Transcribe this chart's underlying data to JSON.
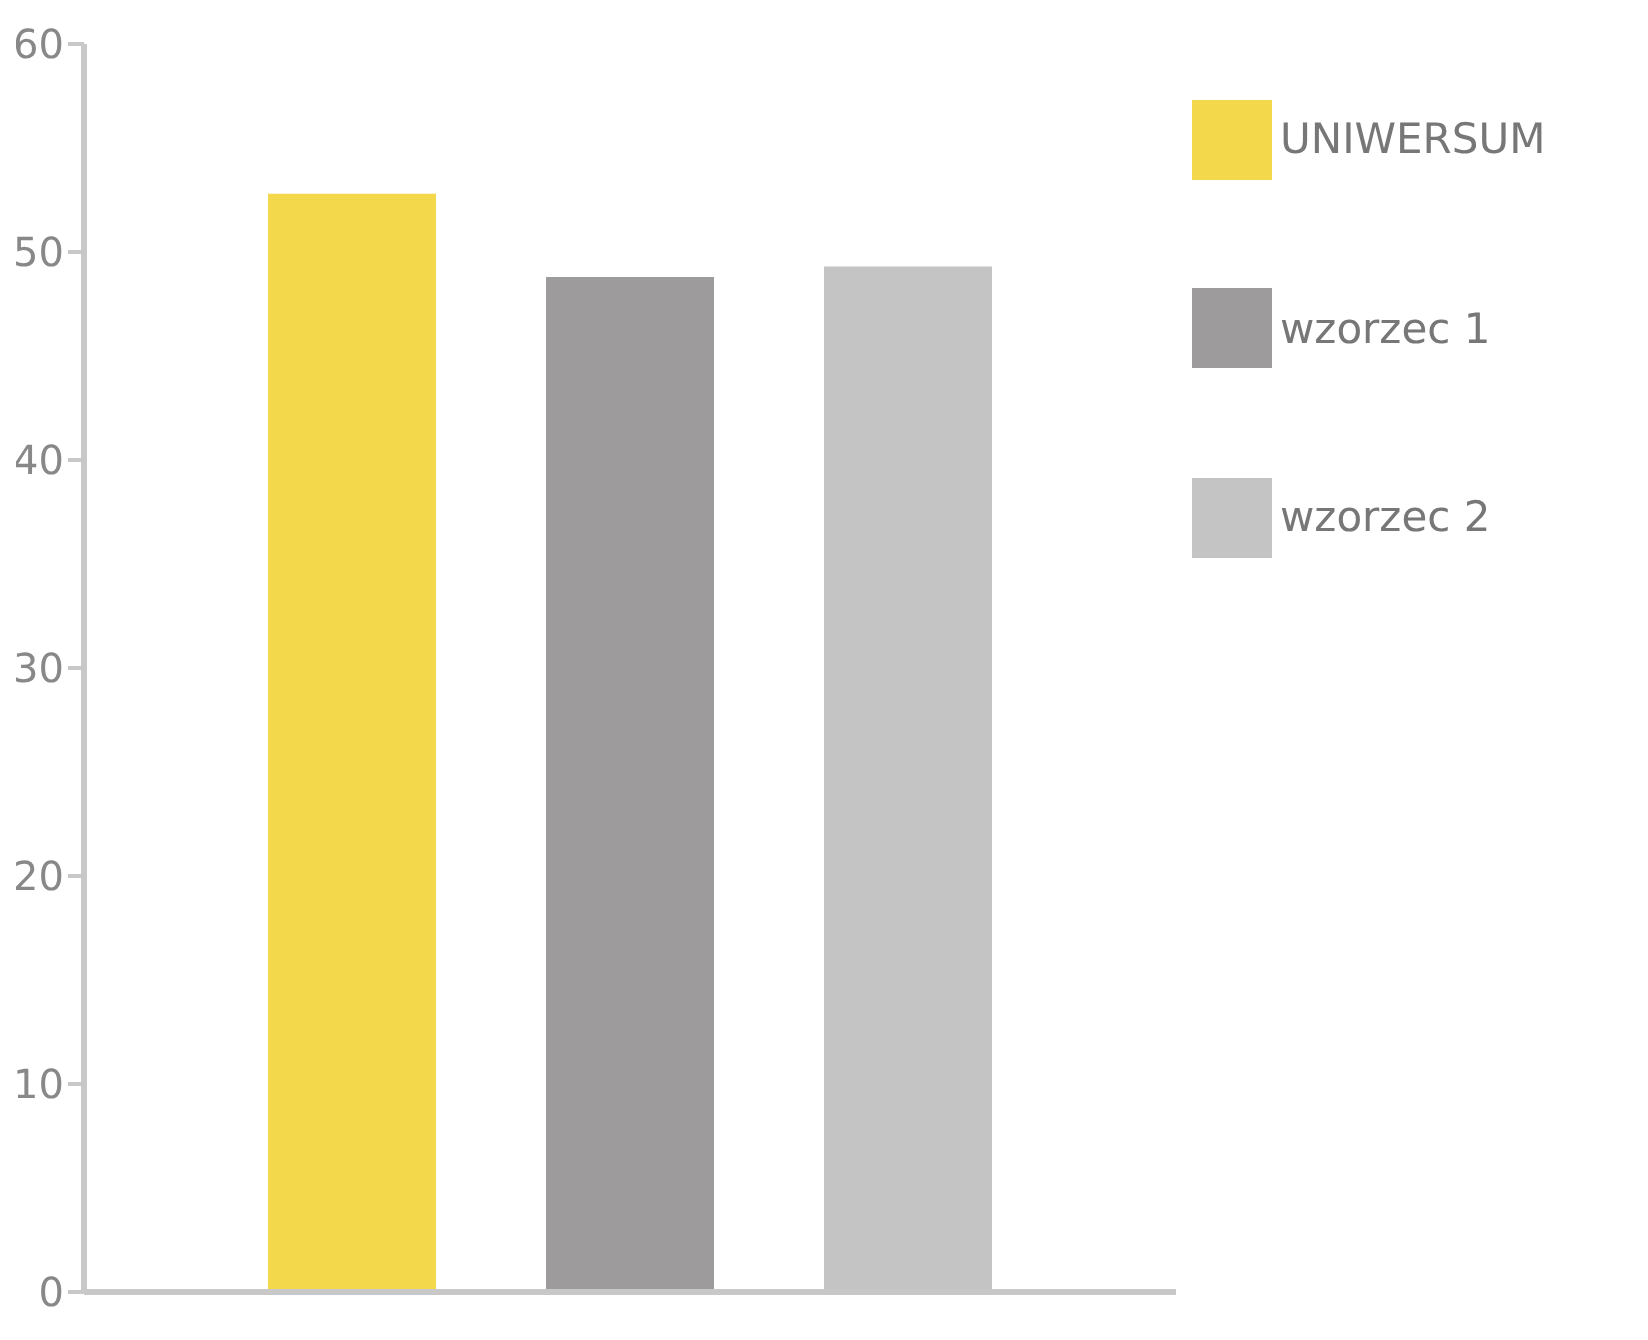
{
  "chart_data": {
    "type": "bar",
    "categories": [
      null
    ],
    "series": [
      {
        "name": "UNIWERSUM",
        "color": "#f3d84b",
        "values": [
          52.8
        ]
      },
      {
        "name": "wzorzec 1",
        "color": "#9d9b9b",
        "values": [
          48.8
        ]
      },
      {
        "name": "wzorzec 2",
        "color": "#c4c4c4",
        "values": [
          49.3
        ]
      }
    ],
    "ylim": [
      0,
      60
    ],
    "yticks": [
      0,
      10,
      20,
      30,
      40,
      50,
      60
    ],
    "grid": false,
    "legend": "top right"
  }
}
